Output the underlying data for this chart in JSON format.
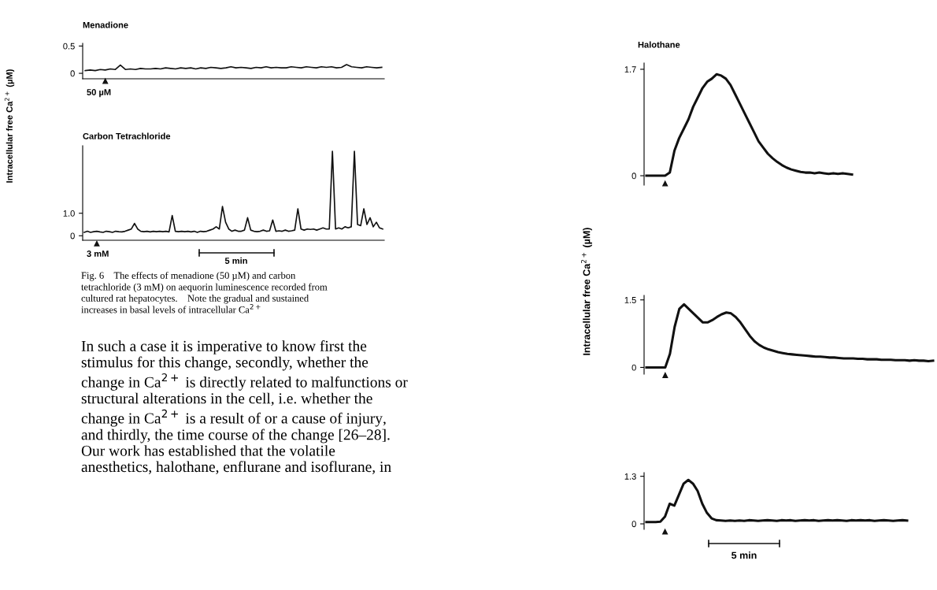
{
  "chart_data": [
    {
      "type": "line",
      "title": "Menadione",
      "ylabel": "Intracellular free Ca$^{2+}$ (µM)",
      "categories": [
        null,
        null,
        null,
        null,
        null,
        null,
        null,
        null,
        null,
        null,
        null,
        null,
        null,
        null,
        null,
        null,
        null,
        null,
        null,
        null,
        null,
        null,
        null,
        null,
        null,
        null,
        null,
        null,
        null,
        null,
        null,
        null,
        null,
        null,
        null,
        null,
        null,
        null,
        null,
        null,
        null,
        null,
        null,
        null,
        null,
        null,
        null,
        null,
        null,
        null,
        null,
        null,
        null,
        null,
        null,
        null,
        null,
        null,
        null,
        null
      ],
      "series": [
        {
          "color": "#111111",
          "values": [
            0.05,
            0.06,
            0.05,
            0.07,
            0.06,
            0.08,
            0.07,
            0.15,
            0.07,
            0.08,
            0.07,
            0.09,
            0.08,
            0.08,
            0.09,
            0.08,
            0.1,
            0.09,
            0.08,
            0.1,
            0.09,
            0.1,
            0.08,
            0.1,
            0.09,
            0.11,
            0.1,
            0.09,
            0.1,
            0.12,
            0.1,
            0.11,
            0.1,
            0.09,
            0.11,
            0.1,
            0.12,
            0.1,
            0.11,
            0.1,
            0.1,
            0.12,
            0.11,
            0.1,
            0.12,
            0.11,
            0.1,
            0.12,
            0.11,
            0.12,
            0.1,
            0.11,
            0.16,
            0.12,
            0.11,
            0.1,
            0.12,
            0.11,
            0.1,
            0.11
          ]
        }
      ],
      "ylim": [
        -0.1,
        0.55
      ],
      "yticks": [
        0,
        0.5
      ],
      "tick_labels": "y",
      "grid": false,
      "annotations": [
        "50 µM"
      ]
    },
    {
      "type": "line",
      "title": "Carbon Tetrachloride",
      "categories": [
        null,
        null,
        null,
        null,
        null,
        null,
        null,
        null,
        null,
        null,
        null,
        null,
        null,
        null,
        null,
        null,
        null,
        null,
        null,
        null,
        null,
        null,
        null,
        null,
        null,
        null,
        null,
        null,
        null,
        null,
        null,
        null,
        null,
        null,
        null,
        null,
        null,
        null,
        null,
        null,
        null,
        null,
        null,
        null,
        null,
        null,
        null,
        null,
        null,
        null,
        null,
        null,
        null,
        null,
        null,
        null,
        null,
        null,
        null,
        null,
        null,
        null,
        null,
        null,
        null,
        null,
        null,
        null,
        null,
        null,
        null,
        null,
        null,
        null,
        null,
        null,
        null,
        null,
        null,
        null,
        null,
        null,
        null,
        null,
        null,
        null,
        null,
        null,
        null,
        null,
        null,
        null,
        null,
        null,
        null,
        null
      ],
      "series": [
        {
          "color": "#111111",
          "values": [
            0.15,
            0.2,
            0.15,
            0.18,
            0.2,
            0.17,
            0.15,
            0.2,
            0.18,
            0.15,
            0.2,
            0.18,
            0.17,
            0.2,
            0.25,
            0.3,
            0.55,
            0.3,
            0.2,
            0.18,
            0.2,
            0.17,
            0.2,
            0.18,
            0.2,
            0.18,
            0.2,
            0.17,
            0.9,
            0.2,
            0.18,
            0.2,
            0.18,
            0.2,
            0.17,
            0.2,
            0.15,
            0.2,
            0.18,
            0.2,
            0.25,
            0.3,
            0.4,
            0.3,
            1.3,
            0.6,
            0.3,
            0.2,
            0.25,
            0.2,
            0.2,
            0.25,
            0.8,
            0.25,
            0.2,
            0.18,
            0.2,
            0.25,
            0.2,
            0.22,
            0.7,
            0.2,
            0.22,
            0.2,
            0.25,
            0.2,
            0.22,
            0.25,
            1.2,
            0.3,
            0.25,
            0.3,
            0.28,
            0.3,
            0.25,
            0.3,
            0.35,
            0.3,
            0.3,
            3.75,
            0.3,
            0.35,
            0.3,
            0.4,
            0.35,
            0.4,
            3.75,
            0.5,
            0.45,
            1.2,
            0.5,
            0.8,
            0.4,
            0.6,
            0.35,
            0.3
          ]
        }
      ],
      "ylim": [
        -0.2,
        4.0
      ],
      "yticks": [
        0,
        {
          "value": 1.0,
          "label": "1.0"
        }
      ],
      "tick_labels": "y",
      "grid": false,
      "annotations": [
        "3 mM",
        "5 min",
        "Fig. 6    The effects of menadione (50 µM) and carbon\ntetrachloride (3 mM) on aequorin luminescence recorded from\ncultured rat hepatocytes.    Note the gradual and sustained\nincreases in basal levels of intracellular Ca$^{2+}$",
        "In such a case it is imperative to know first the\nstimulus for this change, secondly, whether the\nchange in Ca$^{2+}$ is directly related to malfunctions or\nstructural alterations in the cell, i.e. whether the\nchange in Ca$^{2+}$ is a result of or a cause of injury,\nand thirdly, the time course of the change [26–28].\nOur work has established that the volatile\nanesthetics, halothane, enflurane and isoflurane, in"
      ]
    },
    {
      "type": "line",
      "title": "Halothane",
      "ylabel": "Intracellular free Ca$^{2+}$ (µM)",
      "categories": [
        null,
        null,
        null,
        null,
        null,
        null,
        null,
        null,
        null,
        null,
        null,
        null,
        null,
        null,
        null,
        null,
        null,
        null,
        null,
        null,
        null,
        null,
        null,
        null,
        null,
        null,
        null,
        null,
        null,
        null,
        null,
        null,
        null,
        null,
        null,
        null,
        null,
        null,
        null,
        null,
        null,
        null,
        null,
        null,
        null
      ],
      "series": [
        {
          "color": "#111111",
          "values": [
            0,
            0,
            0,
            0,
            0,
            0.05,
            0.4,
            0.6,
            0.75,
            0.9,
            1.1,
            1.25,
            1.4,
            1.5,
            1.55,
            1.62,
            1.6,
            1.55,
            1.45,
            1.3,
            1.15,
            1.0,
            0.85,
            0.7,
            0.55,
            0.45,
            0.35,
            0.28,
            0.22,
            0.17,
            0.13,
            0.1,
            0.08,
            0.06,
            0.05,
            0.05,
            0.04,
            0.05,
            0.04,
            0.03,
            0.04,
            0.03,
            0.04,
            0.03,
            0.02
          ]
        }
      ],
      "ylim": [
        -0.15,
        1.8
      ],
      "yticks": [
        0,
        1.7
      ],
      "tick_labels": "y",
      "grid": false
    },
    {
      "type": "line",
      "categories": [
        null,
        null,
        null,
        null,
        null,
        null,
        null,
        null,
        null,
        null,
        null,
        null,
        null,
        null,
        null,
        null,
        null,
        null,
        null,
        null,
        null,
        null,
        null,
        null,
        null,
        null,
        null,
        null,
        null,
        null,
        null,
        null,
        null,
        null,
        null,
        null,
        null,
        null,
        null,
        null,
        null,
        null,
        null,
        null,
        null,
        null,
        null,
        null,
        null,
        null,
        null,
        null,
        null,
        null,
        null,
        null,
        null,
        null,
        null,
        null,
        null,
        null
      ],
      "series": [
        {
          "color": "#111111",
          "values": [
            0,
            0,
            0,
            0,
            0,
            0.3,
            0.9,
            1.3,
            1.4,
            1.3,
            1.2,
            1.1,
            1.0,
            1.0,
            1.05,
            1.12,
            1.18,
            1.22,
            1.2,
            1.12,
            1.0,
            0.85,
            0.7,
            0.58,
            0.5,
            0.44,
            0.4,
            0.37,
            0.34,
            0.32,
            0.3,
            0.29,
            0.28,
            0.27,
            0.26,
            0.25,
            0.24,
            0.24,
            0.23,
            0.22,
            0.22,
            0.21,
            0.2,
            0.2,
            0.2,
            0.19,
            0.19,
            0.18,
            0.18,
            0.18,
            0.17,
            0.17,
            0.17,
            0.16,
            0.16,
            0.16,
            0.15,
            0.16,
            0.15,
            0.15,
            0.14,
            0.15
          ]
        }
      ],
      "ylim": [
        -0.15,
        1.6
      ],
      "yticks": [
        0,
        1.5
      ],
      "tick_labels": "y",
      "grid": false
    },
    {
      "type": "line",
      "categories": [
        null,
        null,
        null,
        null,
        null,
        null,
        null,
        null,
        null,
        null,
        null,
        null,
        null,
        null,
        null,
        null,
        null,
        null,
        null,
        null,
        null,
        null,
        null,
        null,
        null,
        null,
        null,
        null,
        null,
        null,
        null,
        null,
        null,
        null,
        null,
        null,
        null,
        null,
        null,
        null,
        null,
        null,
        null,
        null,
        null,
        null,
        null,
        null,
        null,
        null,
        null,
        null,
        null,
        null,
        null,
        null,
        null
      ],
      "series": [
        {
          "color": "#111111",
          "values": [
            0.05,
            0.05,
            0.05,
            0.06,
            0.2,
            0.55,
            0.5,
            0.8,
            1.1,
            1.2,
            1.1,
            0.9,
            0.55,
            0.3,
            0.15,
            0.1,
            0.09,
            0.08,
            0.09,
            0.08,
            0.09,
            0.08,
            0.1,
            0.09,
            0.08,
            0.09,
            0.1,
            0.09,
            0.08,
            0.1,
            0.09,
            0.1,
            0.08,
            0.09,
            0.1,
            0.09,
            0.1,
            0.08,
            0.09,
            0.1,
            0.09,
            0.1,
            0.09,
            0.08,
            0.1,
            0.09,
            0.1,
            0.09,
            0.1,
            0.08,
            0.09,
            0.1,
            0.09,
            0.08,
            0.09,
            0.1,
            0.09
          ]
        }
      ],
      "ylim": [
        -0.15,
        1.4
      ],
      "yticks": [
        0,
        1.3
      ],
      "tick_labels": "y",
      "grid": false,
      "annotations": [
        "5 min"
      ]
    }
  ]
}
